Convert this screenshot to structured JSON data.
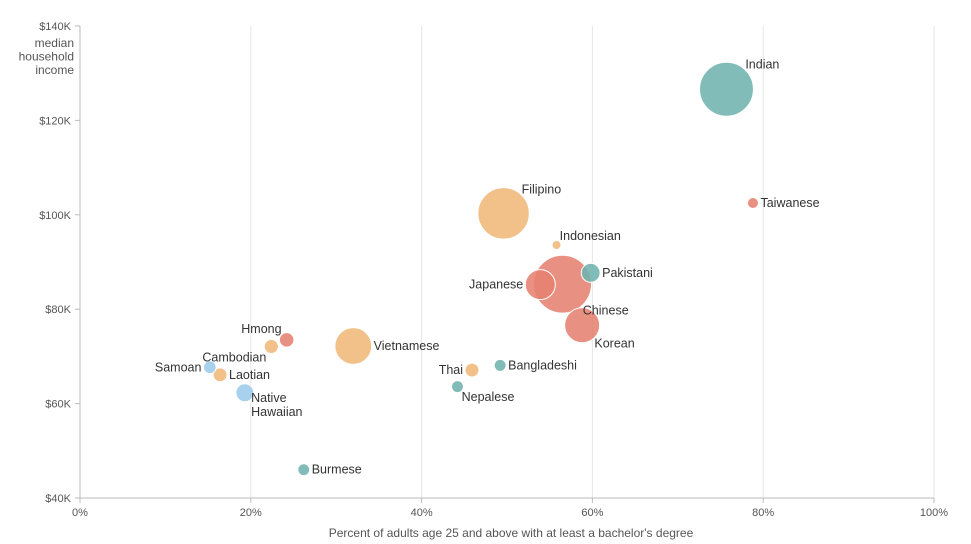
{
  "chart_data": {
    "type": "scatter",
    "title": "",
    "xlabel": "Percent of adults age 25 and above with at least a bachelor's degree",
    "ylabel": [
      "median",
      "household",
      "income"
    ],
    "xlim": [
      0,
      100
    ],
    "ylim": [
      40000,
      140000
    ],
    "x_ticks": [
      {
        "value": 0,
        "label": "0%"
      },
      {
        "value": 20,
        "label": "20%"
      },
      {
        "value": 40,
        "label": "40%"
      },
      {
        "value": 60,
        "label": "60%"
      },
      {
        "value": 80,
        "label": "80%"
      },
      {
        "value": 100,
        "label": "100%"
      }
    ],
    "y_ticks": [
      {
        "value": 40000,
        "label": "$40K"
      },
      {
        "value": 60000,
        "label": "$60K"
      },
      {
        "value": 80000,
        "label": "$80K"
      },
      {
        "value": 100000,
        "label": "$100K"
      },
      {
        "value": 120000,
        "label": "$120K"
      },
      {
        "value": 140000,
        "label": "$140K"
      }
    ],
    "grid": {
      "vertical": true,
      "horizontal": false
    },
    "colors": {
      "teal": "#6fb3ae",
      "orange": "#f0b87a",
      "red": "#e5816f",
      "blue": "#9ccbeb"
    },
    "points": [
      {
        "name": "Indian",
        "label": [
          "Indian"
        ],
        "x": 75.7,
        "y": 126600,
        "size": 4.5,
        "color": "#6fb3ae",
        "label_pos": "top-right"
      },
      {
        "name": "Taiwanese",
        "label": [
          "Taiwanese"
        ],
        "x": 78.8,
        "y": 102500,
        "size": 0.19,
        "color": "#e5816f",
        "label_pos": "right"
      },
      {
        "name": "Filipino",
        "label": [
          "Filipino"
        ],
        "x": 49.6,
        "y": 100300,
        "size": 4.1,
        "color": "#f0b87a",
        "label_pos": "top-right"
      },
      {
        "name": "Indonesian",
        "label": [
          "Indonesian"
        ],
        "x": 55.8,
        "y": 93600,
        "size": 0.1,
        "color": "#f0b87a",
        "label_pos": "top-right"
      },
      {
        "name": "Pakistani",
        "label": [
          "Pakistani"
        ],
        "x": 59.8,
        "y": 87700,
        "size": 0.55,
        "color": "#6fb3ae",
        "label_pos": "right"
      },
      {
        "name": "Chinese",
        "label": [
          "Chinese"
        ],
        "x": 56.5,
        "y": 85300,
        "size": 5.2,
        "color": "#e5816f",
        "label_pos": "bottom-right"
      },
      {
        "name": "Japanese",
        "label": [
          "Japanese"
        ],
        "x": 53.9,
        "y": 85200,
        "size": 1.4,
        "color": "#e5816f",
        "label_pos": "left"
      },
      {
        "name": "Korean",
        "label": [
          "Korean"
        ],
        "x": 58.8,
        "y": 76600,
        "size": 1.9,
        "color": "#e5816f",
        "label_pos": "bottom-right"
      },
      {
        "name": "Hmong",
        "label": [
          "Hmong"
        ],
        "x": 24.2,
        "y": 73500,
        "size": 0.33,
        "color": "#e5816f",
        "label_pos": "top-left"
      },
      {
        "name": "Cambodian",
        "label": [
          "Cambodian"
        ],
        "x": 22.4,
        "y": 72100,
        "size": 0.31,
        "color": "#f0b87a",
        "label_pos": "bottom-left"
      },
      {
        "name": "Vietnamese",
        "label": [
          "Vietnamese"
        ],
        "x": 32.0,
        "y": 72200,
        "size": 2.1,
        "color": "#f0b87a",
        "label_pos": "right"
      },
      {
        "name": "Bangladeshi",
        "label": [
          "Bangladeshi"
        ],
        "x": 49.2,
        "y": 68100,
        "size": 0.22,
        "color": "#6fb3ae",
        "label_pos": "right"
      },
      {
        "name": "Thai",
        "label": [
          "Thai"
        ],
        "x": 45.9,
        "y": 67100,
        "size": 0.3,
        "color": "#f0b87a",
        "label_pos": "left"
      },
      {
        "name": "Samoan",
        "label": [
          "Samoan"
        ],
        "x": 15.2,
        "y": 67700,
        "size": 0.25,
        "color": "#9ccbeb",
        "label_pos": "left"
      },
      {
        "name": "Laotian",
        "label": [
          "Laotian"
        ],
        "x": 16.4,
        "y": 66100,
        "size": 0.3,
        "color": "#f0b87a",
        "label_pos": "right"
      },
      {
        "name": "Nepalese",
        "label": [
          "Nepalese"
        ],
        "x": 44.2,
        "y": 63600,
        "size": 0.22,
        "color": "#6fb3ae",
        "label_pos": "bottom-right"
      },
      {
        "name": "Native Hawaiian",
        "label": [
          "Native",
          "Hawaiian"
        ],
        "x": 19.3,
        "y": 62300,
        "size": 0.5,
        "color": "#9ccbeb",
        "label_pos": "bottom-right"
      },
      {
        "name": "Burmese",
        "label": [
          "Burmese"
        ],
        "x": 26.2,
        "y": 46000,
        "size": 0.22,
        "color": "#6fb3ae",
        "label_pos": "right"
      }
    ]
  }
}
